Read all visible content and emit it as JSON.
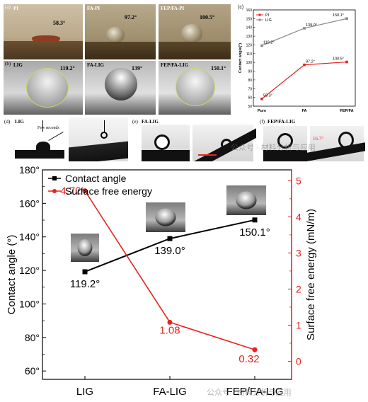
{
  "top_panels": {
    "a": {
      "tag": "(a)",
      "photos": [
        {
          "label": "PI",
          "angle": "58.3°"
        },
        {
          "label": "FA-PI",
          "angle": "97.2°"
        },
        {
          "label": "FEP/FA-PI",
          "angle": "100.5°"
        }
      ]
    },
    "b": {
      "tag": "(b)",
      "photos": [
        {
          "label": "LIG",
          "angle": "119.2°"
        },
        {
          "label": "FA-LIG",
          "angle": "139°"
        },
        {
          "label": "FEP/FA-LIG",
          "angle": "150.1°"
        }
      ]
    },
    "d": {
      "tag": "(d)",
      "label": "LIG",
      "note": "Few seconds"
    },
    "e": {
      "tag": "(e)",
      "label": "FA-LIG"
    },
    "f": {
      "tag": "(f)",
      "label": "FEP/FA-LIG",
      "angle": "16.7°"
    }
  },
  "watermark": {
    "text1": "公众号 · 材料分析与应用",
    "text2": "公众号 · 材料分析与应用"
  },
  "chart_data": [
    {
      "id": "c",
      "type": "line",
      "tag": "(c)",
      "categories": [
        "Pure",
        "FA",
        "FEP/FA"
      ],
      "series": [
        {
          "name": "PI",
          "color": "#e8231e",
          "values": [
            58.3,
            97.2,
            100.5
          ],
          "labels": [
            "58.3°",
            "97.2°",
            "100.5°"
          ]
        },
        {
          "name": "LIG",
          "color": "#8a8a8a",
          "values": [
            119.2,
            139.0,
            150.1
          ],
          "labels": [
            "119.2°",
            "139.0°",
            "150.1°"
          ]
        }
      ],
      "ylabel": "Contact angle(°)",
      "ylim": [
        50,
        160
      ],
      "yticks": [
        "50",
        "60",
        "70",
        "80",
        "90",
        "100",
        "110",
        "120",
        "130",
        "140",
        "150",
        "160"
      ],
      "legend_position": "top-left"
    },
    {
      "id": "main",
      "type": "line",
      "categories": [
        "LIG",
        "FA-LIG",
        "FEP/FA-LIG"
      ],
      "series": [
        {
          "name": "Contact angle",
          "color": "#000000",
          "axis": "left",
          "values": [
            119.2,
            139.0,
            150.1
          ],
          "labels": [
            "119.2°",
            "139.0°",
            "150.1°"
          ]
        },
        {
          "name": "Surface free energy",
          "color": "#e8231e",
          "axis": "right",
          "values": [
            4.72,
            1.08,
            0.32
          ],
          "labels": [
            "4.72",
            "1.08",
            "0.32"
          ]
        }
      ],
      "ylabel": "Contact angle (°)",
      "ylim": [
        55,
        180
      ],
      "yticks": [
        "60°",
        "80°",
        "100°",
        "120°",
        "140°",
        "160°",
        "180°"
      ],
      "y2label": "Surface free energy (mN/m)",
      "y2lim": [
        -0.5,
        5.3
      ],
      "y2ticks": [
        "0",
        "1",
        "2",
        "3",
        "4",
        "5"
      ],
      "legend_position": "top-left"
    }
  ]
}
